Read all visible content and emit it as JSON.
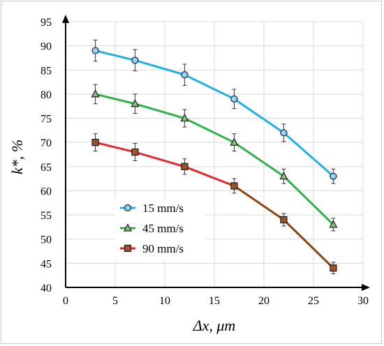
{
  "chart_data": {
    "type": "line",
    "title": "",
    "xlabel": "Δx, μm",
    "ylabel": "k*, %",
    "xlim": [
      0,
      30
    ],
    "ylim": [
      40,
      95
    ],
    "x_ticks": [
      0,
      5,
      10,
      15,
      20,
      25,
      30
    ],
    "y_ticks": [
      40,
      45,
      50,
      55,
      60,
      65,
      70,
      75,
      80,
      85,
      90,
      95
    ],
    "grid": "horizontal and vertical",
    "legend_position": "lower-left",
    "series": [
      {
        "name": "15 mm/s",
        "color": "#1fb1e6",
        "marker": "circle",
        "marker_fill": "#8fd3f4",
        "x": [
          3,
          7,
          12,
          17,
          22,
          27
        ],
        "y": [
          89,
          87,
          84,
          79,
          72,
          63
        ],
        "error": [
          2.2,
          2.2,
          2.2,
          2.0,
          1.8,
          1.5
        ]
      },
      {
        "name": "45 mm/s",
        "color": "#2eb04b",
        "marker": "triangle",
        "marker_fill": "#8fbf7f",
        "x": [
          3,
          7,
          12,
          17,
          22,
          27
        ],
        "y": [
          80,
          78,
          75,
          70,
          63,
          53
        ],
        "error": [
          2.0,
          2.0,
          1.8,
          1.8,
          1.5,
          1.3
        ]
      },
      {
        "name": "90 mm/s",
        "color": "#e8262b",
        "color_tail": "#8b4513",
        "marker": "square",
        "marker_fill": "#a0522d",
        "x": [
          3,
          7,
          12,
          17,
          22,
          27
        ],
        "y": [
          70,
          68,
          65,
          61,
          54,
          44
        ],
        "error": [
          1.8,
          1.8,
          1.6,
          1.5,
          1.3,
          1.2
        ]
      }
    ]
  }
}
